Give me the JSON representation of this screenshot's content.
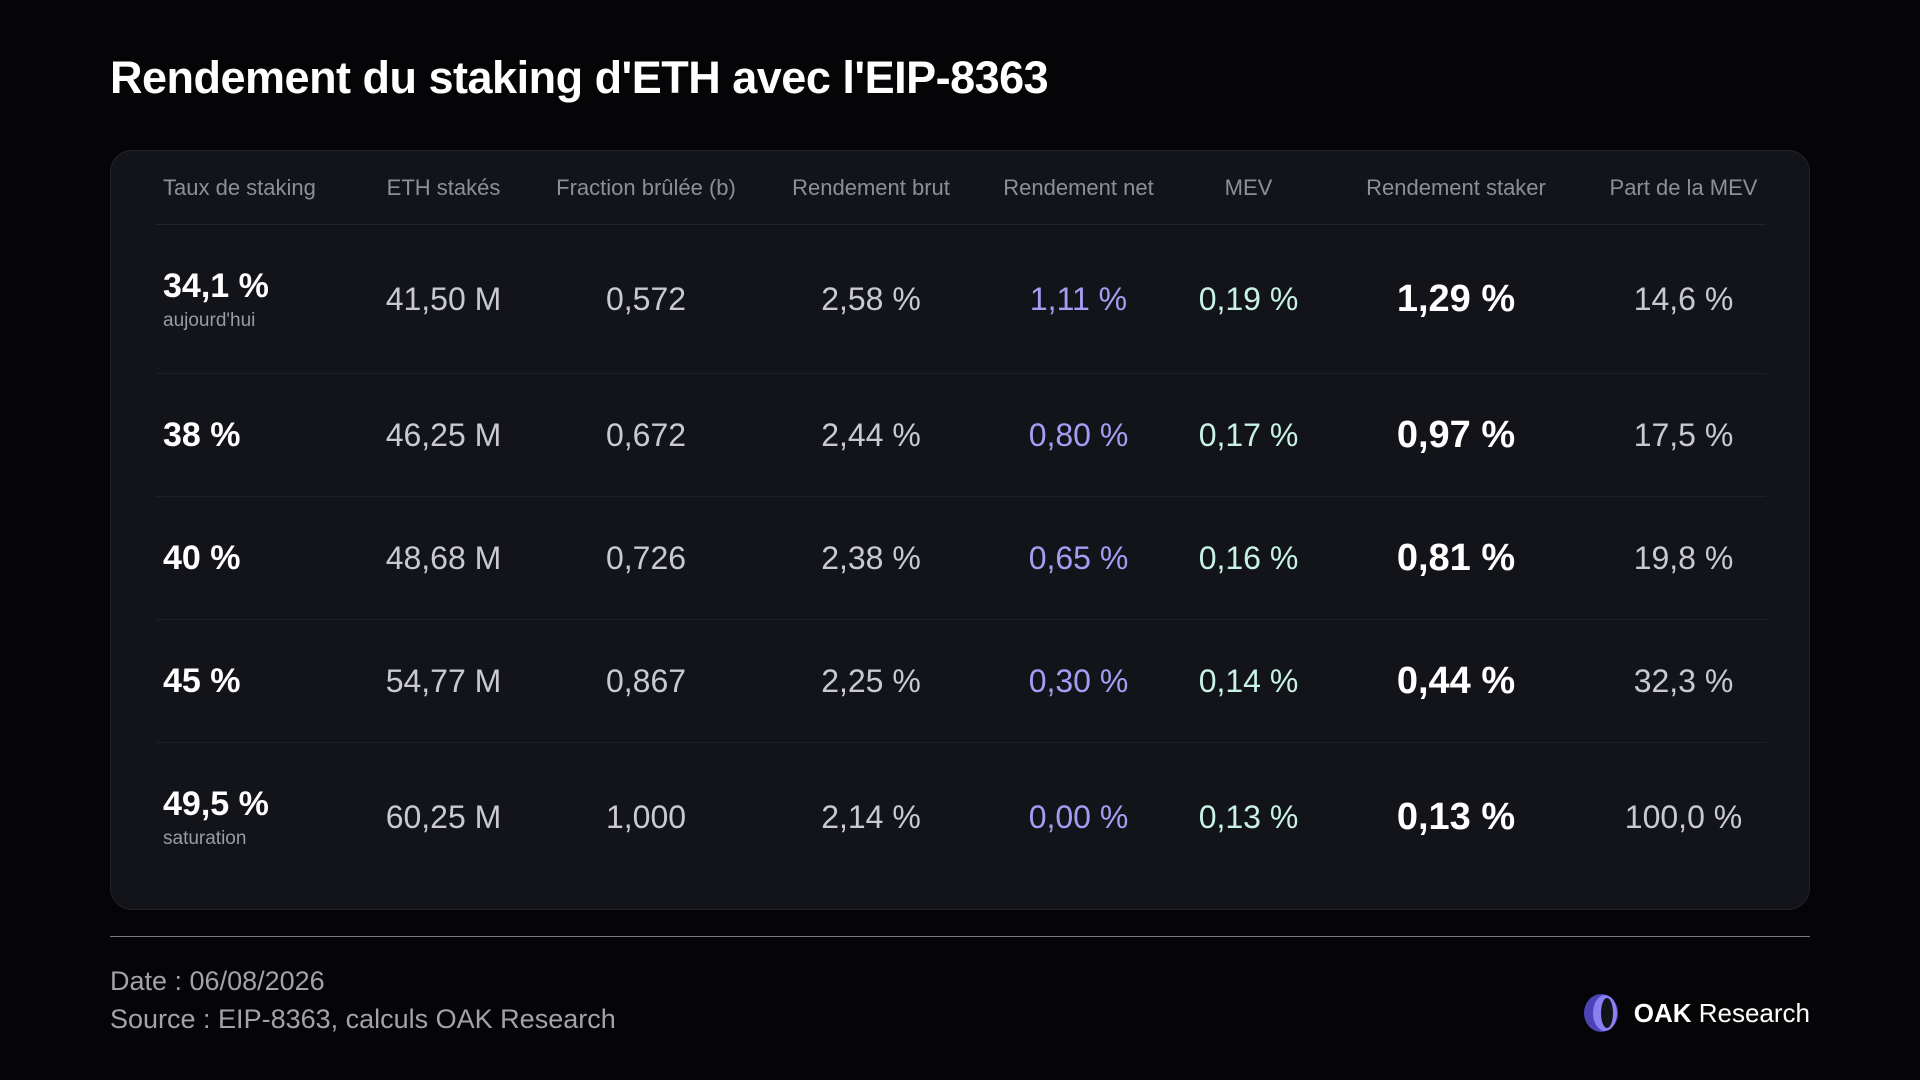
{
  "title": "Rendement du staking d'ETH avec l'EIP-8363",
  "chart_data": {
    "type": "table",
    "columns": [
      "Taux de staking",
      "ETH stakés",
      "Fraction brûlée (b)",
      "Rendement brut",
      "Rendement net",
      "MEV",
      "Rendement staker",
      "Part de la MEV"
    ],
    "rows": [
      {
        "rate": "34,1 %",
        "note": "aujourd'hui",
        "eth": "41,50 M",
        "burn": "0,572",
        "gross": "2,58 %",
        "net": "1,11 %",
        "mev": "0,19 %",
        "staker": "1,29 %",
        "mev_share": "14,6 %"
      },
      {
        "rate": "38 %",
        "note": "",
        "eth": "46,25 M",
        "burn": "0,672",
        "gross": "2,44 %",
        "net": "0,80 %",
        "mev": "0,17 %",
        "staker": "0,97 %",
        "mev_share": "17,5 %"
      },
      {
        "rate": "40 %",
        "note": "",
        "eth": "48,68 M",
        "burn": "0,726",
        "gross": "2,38 %",
        "net": "0,65 %",
        "mev": "0,16 %",
        "staker": "0,81 %",
        "mev_share": "19,8 %"
      },
      {
        "rate": "45 %",
        "note": "",
        "eth": "54,77 M",
        "burn": "0,867",
        "gross": "2,25 %",
        "net": "0,30 %",
        "mev": "0,14 %",
        "staker": "0,44 %",
        "mev_share": "32,3 %"
      },
      {
        "rate": "49,5 %",
        "note": "saturation",
        "eth": "60,25 M",
        "burn": "1,000",
        "gross": "2,14 %",
        "net": "0,00 %",
        "mev": "0,13 %",
        "staker": "0,13 %",
        "mev_share": "100,0 %"
      }
    ]
  },
  "footer": {
    "date": "Date : 06/08/2026",
    "source": "Source : EIP-8363, calculs OAK Research",
    "brand_bold": "OAK",
    "brand_rest": " Research",
    "logo_icon": "oak-logo-icon"
  },
  "colors": {
    "background": "#050507",
    "card": "#131419",
    "net": "#a79cf4",
    "mev": "#c8f2e6",
    "logo": "#6f63e8"
  }
}
